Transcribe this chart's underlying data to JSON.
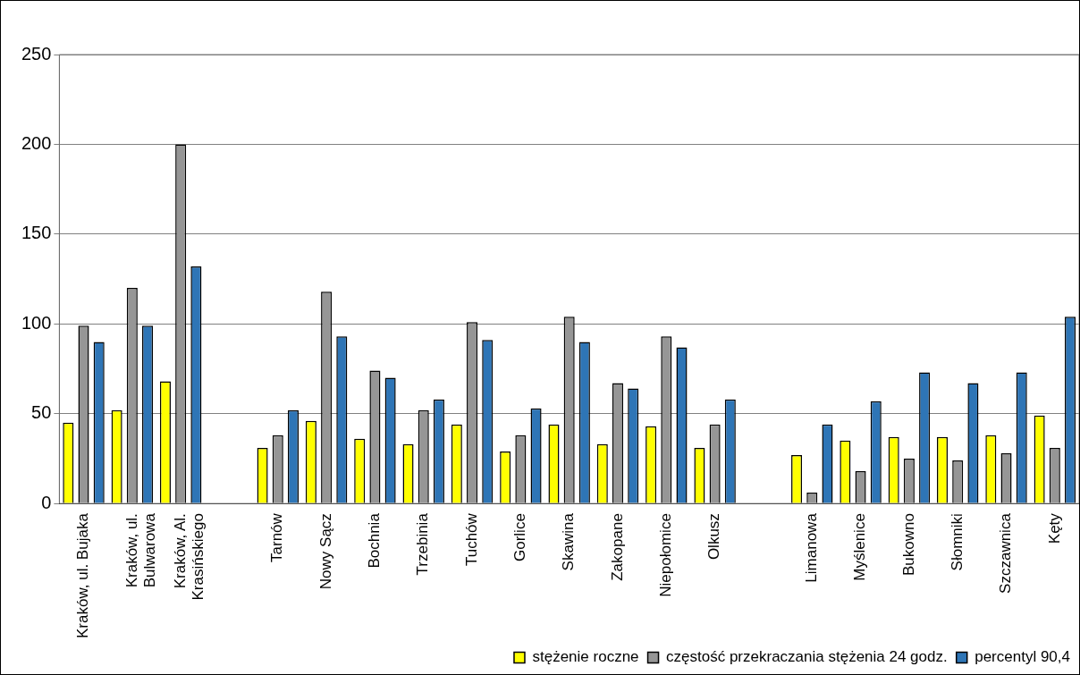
{
  "chart_data": {
    "type": "bar",
    "categories": [
      "Kraków, ul. Bujaka",
      "Kraków, ul.\nBulwarowa",
      "Kraków, Al.\nKrasińskiego",
      null,
      "Tarnów",
      "Nowy Sącz",
      "Bochnia",
      "Trzebinia",
      "Tuchów",
      "Gorlice",
      "Skawina",
      "Zakopane",
      "Niepołomice",
      "Olkusz",
      null,
      "Limanowa",
      "Myślenice",
      "Bukowno",
      "Słomniki",
      "Szczawnica",
      "Kęty"
    ],
    "series": [
      {
        "name": "stężenie roczne",
        "color": "#ffff00",
        "values": [
          45,
          52,
          68,
          null,
          31,
          46,
          36,
          33,
          44,
          29,
          44,
          33,
          43,
          31,
          null,
          27,
          35,
          37,
          37,
          38,
          49
        ]
      },
      {
        "name": "częstość przekraczania stężenia 24 godz.",
        "color": "#969696",
        "values": [
          99,
          120,
          200,
          null,
          38,
          118,
          74,
          52,
          101,
          38,
          104,
          67,
          93,
          44,
          null,
          6,
          18,
          25,
          24,
          28,
          31
        ]
      },
      {
        "name": "percentyl 90,4",
        "color": "#2e75b6",
        "values": [
          90,
          99,
          132,
          null,
          52,
          93,
          70,
          58,
          91,
          53,
          90,
          64,
          87,
          58,
          null,
          44,
          57,
          73,
          67,
          73,
          104
        ]
      }
    ],
    "ylim": [
      0,
      250
    ],
    "yticks": [
      0,
      50,
      100,
      150,
      200,
      250
    ],
    "grid": "y",
    "legend": "bottom right"
  }
}
